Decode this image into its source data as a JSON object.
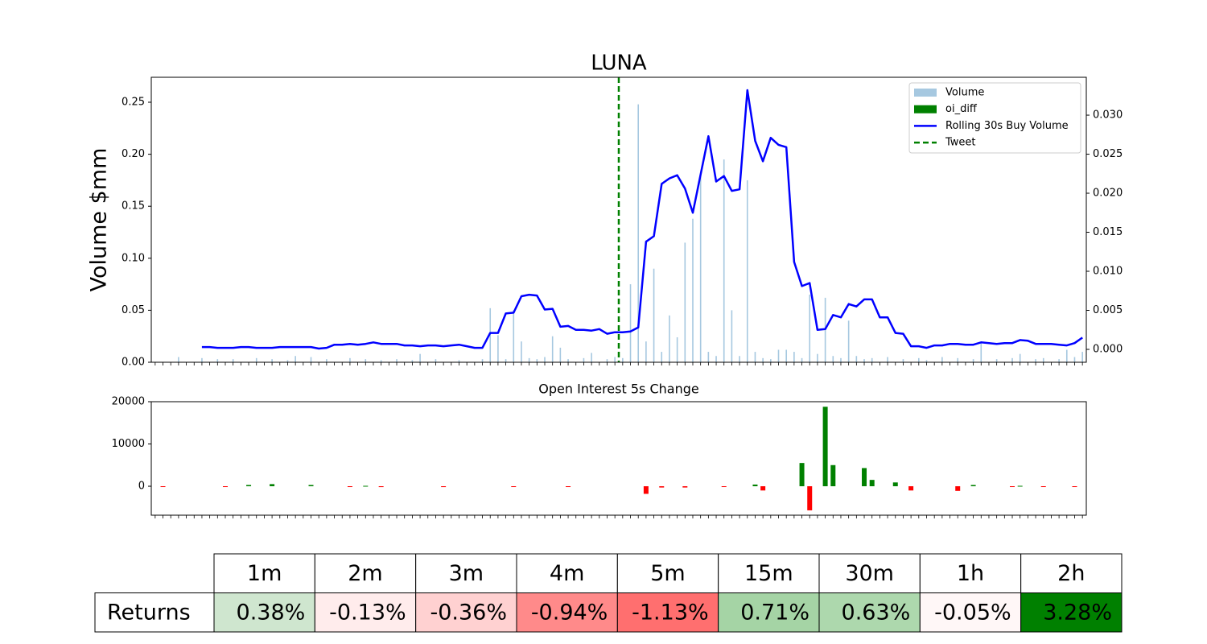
{
  "chart_data": [
    {
      "type": "combo",
      "title": "LUNA",
      "ylabel": "Volume $mm",
      "legend": "upper right",
      "ylim": [
        0,
        0.274
      ],
      "yticks": [
        {
          "value": 0,
          "label": "0.00"
        },
        {
          "value": 0.05,
          "label": "0.05"
        },
        {
          "value": 0.1,
          "label": "0.10"
        },
        {
          "value": 0.15,
          "label": "0.15"
        },
        {
          "value": 0.2,
          "label": "0.20"
        },
        {
          "value": 0.25,
          "label": "0.25"
        }
      ],
      "y2lim": [
        -0.00165,
        0.03485
      ],
      "y2ticks": [
        {
          "value": 0,
          "label": "0.000"
        },
        {
          "value": 0.005,
          "label": "0.005"
        },
        {
          "value": 0.01,
          "label": "0.010"
        },
        {
          "value": 0.015,
          "label": "0.015"
        },
        {
          "value": 0.02,
          "label": "0.020"
        },
        {
          "value": 0.025,
          "label": "0.025"
        },
        {
          "value": 0.03,
          "label": "0.030"
        }
      ],
      "categories": [
        null,
        null,
        null,
        null,
        null,
        null,
        null,
        null,
        null,
        null,
        null,
        null,
        null,
        null,
        null,
        null,
        null,
        null,
        null,
        null,
        null,
        null,
        null,
        null,
        null,
        null,
        null,
        null,
        null,
        null,
        null,
        null,
        null,
        null,
        null,
        null,
        null,
        null,
        null,
        null,
        null,
        null,
        null,
        null,
        null,
        null,
        null,
        null,
        null,
        null,
        null,
        null,
        null,
        null,
        null,
        null,
        null,
        null,
        null,
        null,
        null,
        null,
        null,
        null,
        null,
        null,
        null,
        null,
        null,
        null,
        null,
        null,
        null,
        null,
        null,
        null,
        null,
        null,
        null,
        null,
        null,
        null,
        null,
        null,
        null,
        null,
        null,
        null,
        null,
        null,
        null,
        null,
        null,
        null,
        null,
        null,
        null,
        null,
        null,
        null,
        null,
        null,
        null,
        null,
        null,
        null,
        null,
        null,
        null,
        null,
        null,
        null,
        null,
        null,
        null,
        null,
        null,
        null,
        null,
        null
      ],
      "series": [
        {
          "name": "Volume",
          "kind": "bar",
          "color": "#a6c8e0",
          "values": [
            null,
            null,
            null,
            0.005,
            null,
            null,
            0.004,
            null,
            0.003,
            null,
            0.003,
            null,
            null,
            0.004,
            null,
            0.003,
            null,
            0.002,
            0.006,
            null,
            0.005,
            null,
            0.003,
            null,
            null,
            0.004,
            null,
            0.003,
            null,
            0.002,
            null,
            0.003,
            null,
            0.002,
            0.008,
            null,
            0.003,
            null,
            null,
            0.002,
            null,
            null,
            0.003,
            0.052,
            0.026,
            0.003,
            0.05,
            0.02,
            0.004,
            0.003,
            0.005,
            0.025,
            0.014,
            0.003,
            null,
            0.004,
            0.009,
            null,
            0.003,
            0.005,
            0.004,
            0.075,
            0.248,
            0.02,
            0.09,
            0.01,
            0.045,
            0.024,
            0.115,
            0.138,
            0.18,
            0.01,
            0.006,
            0.195,
            0.05,
            0.006,
            0.175,
            0.01,
            0.004,
            0.003,
            0.012,
            0.012,
            0.01,
            0.004,
            0.065,
            0.008,
            0.062,
            0.006,
            0.004,
            0.04,
            0.006,
            0.003,
            0.004,
            null,
            0.005,
            null,
            0.003,
            null,
            0.004,
            0.002,
            null,
            0.005,
            null,
            0.004,
            null,
            0.003,
            0.02,
            null,
            0.003,
            null,
            0.004,
            0.008,
            null,
            0.003,
            0.004,
            null,
            0.003,
            0.012,
            0.005,
            0.01
          ]
        },
        {
          "name": "Rolling 30s Buy Volume",
          "kind": "line",
          "axis": "y2",
          "color": "#0000ff",
          "values": [
            null,
            null,
            null,
            null,
            null,
            null,
            0.0003,
            0.0003,
            0.0002,
            0.0002,
            0.0002,
            0.0003,
            0.0003,
            0.0002,
            0.0002,
            0.0002,
            0.0003,
            0.0003,
            0.0003,
            0.0003,
            0.0003,
            0.0001,
            0.0002,
            0.0006,
            0.0006,
            0.0007,
            0.0006,
            0.0007,
            0.0009,
            0.0007,
            0.0007,
            0.0007,
            0.0005,
            0.0005,
            0.0004,
            0.0005,
            0.0005,
            0.0004,
            0.0005,
            0.0006,
            0.0004,
            0.0002,
            0.0002,
            0.0021,
            0.0021,
            0.0046,
            0.0047,
            0.0068,
            0.007,
            0.0069,
            0.0051,
            0.0052,
            0.0029,
            0.003,
            0.0025,
            0.0025,
            0.0024,
            0.0026,
            0.002,
            0.0022,
            0.0022,
            0.0023,
            0.0028,
            0.0138,
            0.0145,
            0.0212,
            0.0219,
            0.0223,
            0.0206,
            0.0175,
            0.0224,
            0.0273,
            0.0215,
            0.0222,
            0.0203,
            0.0205,
            0.0332,
            0.0267,
            0.0241,
            0.0271,
            0.0262,
            0.0259,
            0.0112,
            0.0081,
            0.0085,
            0.0025,
            0.0026,
            0.0044,
            0.0041,
            0.0058,
            0.0055,
            0.0064,
            0.0064,
            0.0041,
            0.0041,
            0.0021,
            0.002,
            0.0004,
            0.0004,
            0.0002,
            0.0005,
            0.0005,
            0.0007,
            0.0007,
            0.0006,
            0.0006,
            0.0009,
            0.0008,
            0.0007,
            0.0008,
            0.0008,
            0.0012,
            0.0011,
            0.0007,
            0.0007,
            0.0007,
            0.0006,
            0.0005,
            0.0008,
            0.0015
          ]
        }
      ],
      "vlines": [
        {
          "name": "Tweet",
          "color": "#008000",
          "at": 60
        }
      ]
    },
    {
      "type": "bar",
      "title": "Open Interest 5s Change",
      "ylim": [
        -6850,
        20000
      ],
      "yticks": [
        0,
        10000,
        20000
      ],
      "categories": [
        null,
        null,
        null,
        null,
        null,
        null,
        null,
        null,
        null,
        null,
        null,
        null,
        null,
        null,
        null,
        null,
        null,
        null,
        null,
        null,
        null,
        null,
        null,
        null,
        null,
        null,
        null,
        null,
        null,
        null,
        null,
        null,
        null,
        null,
        null,
        null,
        null,
        null,
        null,
        null,
        null,
        null,
        null,
        null,
        null,
        null,
        null,
        null,
        null,
        null,
        null,
        null,
        null,
        null,
        null,
        null,
        null,
        null,
        null,
        null,
        null,
        null,
        null,
        null,
        null,
        null,
        null,
        null,
        null,
        null,
        null,
        null,
        null,
        null,
        null,
        null,
        null,
        null,
        null,
        null,
        null,
        null,
        null,
        null,
        null,
        null,
        null,
        null,
        null,
        null,
        null,
        null,
        null,
        null,
        null,
        null,
        null,
        null,
        null,
        null,
        null,
        null,
        null,
        null,
        null,
        null,
        null,
        null,
        null,
        null,
        null,
        null,
        null,
        null,
        null,
        null,
        null,
        null,
        null,
        null
      ],
      "series": [
        {
          "name": "oi_diff",
          "color": "#008000",
          "neg_color": "#ff0000",
          "values": [
            null,
            -100,
            null,
            null,
            null,
            null,
            null,
            null,
            null,
            -100,
            null,
            null,
            300,
            null,
            null,
            500,
            null,
            null,
            null,
            null,
            300,
            null,
            null,
            null,
            null,
            -100,
            null,
            100,
            null,
            -200,
            null,
            null,
            null,
            null,
            null,
            null,
            null,
            -200,
            null,
            null,
            null,
            null,
            null,
            null,
            null,
            null,
            -100,
            null,
            null,
            null,
            null,
            null,
            null,
            -100,
            null,
            null,
            null,
            null,
            null,
            null,
            null,
            null,
            null,
            -1800,
            null,
            -300,
            null,
            null,
            -300,
            null,
            null,
            null,
            null,
            -100,
            null,
            null,
            null,
            400,
            -1000,
            null,
            null,
            null,
            null,
            5500,
            -5700,
            null,
            18800,
            5000,
            null,
            null,
            null,
            4300,
            1500,
            null,
            null,
            900,
            null,
            -1000,
            null,
            null,
            null,
            null,
            null,
            -1100,
            null,
            300,
            null,
            null,
            null,
            null,
            -100,
            100,
            null,
            null,
            -100,
            null,
            null,
            null,
            -100,
            null
          ]
        }
      ]
    }
  ],
  "table": {
    "columns": [
      "1m",
      "2m",
      "3m",
      "4m",
      "5m",
      "15m",
      "30m",
      "1h",
      "2h"
    ],
    "rows": [
      {
        "label": "Returns",
        "cells": [
          "0.38%",
          "-0.13%",
          "-0.36%",
          "-0.94%",
          "-1.13%",
          "0.71%",
          "0.63%",
          "-0.05%",
          "3.28%"
        ],
        "colors": [
          "#cfe6cf",
          "#ffecec",
          "#ffd1d1",
          "#ff8a8a",
          "#ff6f6f",
          "#a5d4a5",
          "#add8ad",
          "#fff7f7",
          "#008000"
        ]
      }
    ]
  }
}
